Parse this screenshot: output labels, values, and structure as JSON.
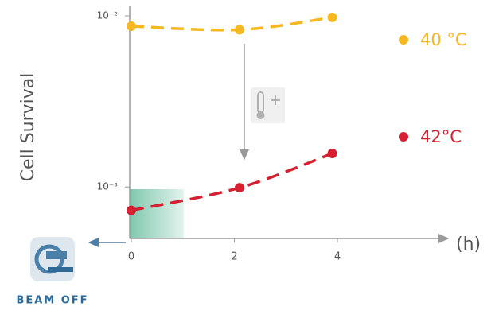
{
  "chart_data": {
    "type": "line",
    "ylabel": "Cell Survival",
    "xlabel": "(h)",
    "annotation": "BEAM OFF",
    "yscale": "log",
    "xlim": [
      0,
      6.1
    ],
    "xticks": [
      0,
      2,
      4
    ],
    "ylim": [
      0.0005,
      0.01
    ],
    "yticks": [
      {
        "value": 0.01,
        "label": "10⁻²"
      },
      {
        "value": 0.001,
        "label": "10⁻³"
      }
    ],
    "x": [
      0,
      2.1,
      3.9
    ],
    "series": [
      {
        "name": "40 °C",
        "color": "#f5b820",
        "values": [
          0.0087,
          0.0083,
          0.0098
        ]
      },
      {
        "name": "42°C",
        "color": "#d42030",
        "values": [
          0.00073,
          0.00099,
          0.00157
        ]
      }
    ]
  }
}
